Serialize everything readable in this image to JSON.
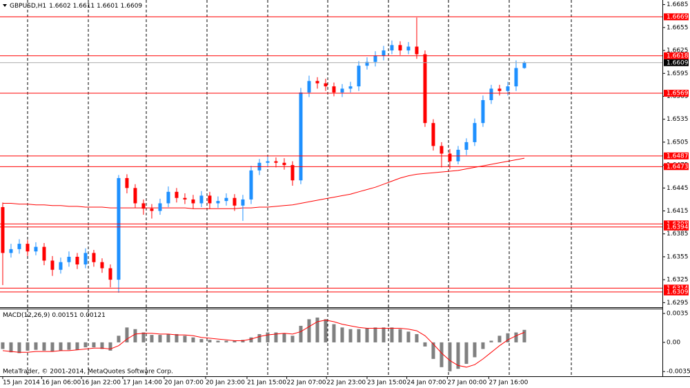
{
  "chart_data": [
    {
      "type": "candlestick",
      "title": "GBPUSD,H1",
      "open": [
        1.642,
        1.636,
        1.6365,
        1.6372,
        1.6362,
        1.6368,
        1.635,
        1.6338,
        1.6348,
        1.6355,
        1.6345,
        1.636,
        1.6348,
        1.634,
        1.6325,
        1.6458,
        1.6445,
        1.6425,
        1.6418,
        1.6415,
        1.6425,
        1.644,
        1.6432,
        1.643,
        1.6425,
        1.6435,
        1.6425,
        1.6428,
        1.6432,
        1.6422,
        1.643,
        1.6468,
        1.6478,
        1.648,
        1.6478,
        1.6475,
        1.6455,
        1.657,
        1.6585,
        1.6582,
        1.6578,
        1.657,
        1.6575,
        1.6578,
        1.6605,
        1.661,
        1.6618,
        1.6625,
        1.6632,
        1.6625,
        1.663,
        1.662,
        1.653,
        1.65,
        1.649,
        1.648,
        1.6495,
        1.6505,
        1.653,
        1.656,
        1.6575,
        1.6572,
        1.6578,
        1.6602
      ],
      "high": [
        1.6426,
        1.6372,
        1.6378,
        1.6377,
        1.6374,
        1.6373,
        1.6356,
        1.6354,
        1.6362,
        1.636,
        1.6366,
        1.6364,
        1.6353,
        1.6345,
        1.6462,
        1.6463,
        1.645,
        1.643,
        1.6424,
        1.6431,
        1.6447,
        1.6445,
        1.6438,
        1.6436,
        1.6441,
        1.644,
        1.6434,
        1.6438,
        1.6437,
        1.6436,
        1.6474,
        1.6483,
        1.6486,
        1.6485,
        1.6484,
        1.648,
        1.6576,
        1.6592,
        1.659,
        1.6588,
        1.6583,
        1.6581,
        1.6584,
        1.6611,
        1.6616,
        1.6624,
        1.6631,
        1.6638,
        1.6637,
        1.6636,
        1.6668,
        1.6625,
        1.6535,
        1.6505,
        1.6496,
        1.65,
        1.651,
        1.6536,
        1.6566,
        1.658,
        1.658,
        1.6584,
        1.6612,
        1.6611
      ],
      "low": [
        1.6318,
        1.6354,
        1.6359,
        1.6356,
        1.6357,
        1.6344,
        1.633,
        1.6333,
        1.6342,
        1.6339,
        1.634,
        1.6342,
        1.6334,
        1.6315,
        1.6308,
        1.6438,
        1.6419,
        1.641,
        1.6405,
        1.641,
        1.642,
        1.6426,
        1.6424,
        1.6418,
        1.642,
        1.6418,
        1.6419,
        1.6422,
        1.6415,
        1.6402,
        1.6424,
        1.6462,
        1.6472,
        1.6472,
        1.6469,
        1.6448,
        1.645,
        1.6564,
        1.6575,
        1.6572,
        1.6565,
        1.6564,
        1.657,
        1.6572,
        1.66,
        1.6604,
        1.6612,
        1.662,
        1.6619,
        1.662,
        1.6614,
        1.6525,
        1.6494,
        1.6472,
        1.647,
        1.6476,
        1.6488,
        1.65,
        1.6525,
        1.6555,
        1.6566,
        1.6566,
        1.6572,
        1.6601
      ],
      "close": [
        1.636,
        1.6365,
        1.6372,
        1.6362,
        1.6368,
        1.635,
        1.6338,
        1.6348,
        1.6355,
        1.6345,
        1.636,
        1.6348,
        1.634,
        1.6325,
        1.6458,
        1.6445,
        1.6425,
        1.6418,
        1.6415,
        1.6425,
        1.644,
        1.6432,
        1.643,
        1.6425,
        1.6435,
        1.6425,
        1.6428,
        1.6432,
        1.6422,
        1.643,
        1.6468,
        1.6478,
        1.648,
        1.6478,
        1.6475,
        1.6455,
        1.657,
        1.6585,
        1.6582,
        1.6578,
        1.657,
        1.6575,
        1.6578,
        1.6605,
        1.661,
        1.6618,
        1.6625,
        1.6632,
        1.6625,
        1.663,
        1.662,
        1.653,
        1.65,
        1.649,
        1.648,
        1.6495,
        1.6505,
        1.653,
        1.656,
        1.6575,
        1.6572,
        1.6578,
        1.6602,
        1.6609
      ],
      "up_color": "#1e90ff",
      "down_color": "#ff0000",
      "ma": {
        "color": "#ff0000",
        "values": [
          1.6425,
          1.6425,
          1.6424,
          1.6424,
          1.6423,
          1.6423,
          1.6422,
          1.6422,
          1.6421,
          1.6421,
          1.642,
          1.642,
          1.642,
          1.6419,
          1.6419,
          1.6419,
          1.6419,
          1.6419,
          1.6419,
          1.6419,
          1.6419,
          1.6419,
          1.6419,
          1.6418,
          1.6418,
          1.6418,
          1.6418,
          1.6418,
          1.6418,
          1.6419,
          1.6419,
          1.642,
          1.642,
          1.6421,
          1.6422,
          1.6423,
          1.6425,
          1.6427,
          1.6429,
          1.6431,
          1.6433,
          1.6435,
          1.6437,
          1.644,
          1.6443,
          1.6446,
          1.645,
          1.6454,
          1.6458,
          1.6461,
          1.6463,
          1.6464,
          1.6465,
          1.6466,
          1.6467,
          1.6468,
          1.647,
          1.6472,
          1.6474,
          1.6476,
          1.6478,
          1.648,
          1.6482,
          1.6484
        ]
      },
      "levels": [
        1.6669,
        1.6618,
        1.6569,
        1.6487,
        1.6473,
        1.6398,
        1.6394,
        1.6314,
        1.6309
      ],
      "level_color": "#ff0000",
      "ylim": [
        1.6289,
        1.6691
      ],
      "yticks": [
        1.6685,
        1.6655,
        1.6625,
        1.6595,
        1.6565,
        1.6535,
        1.6505,
        1.6475,
        1.6445,
        1.6415,
        1.6385,
        1.6355,
        1.6325,
        1.6295
      ],
      "xlim": [
        -0.33,
        79.67
      ],
      "xticks": [
        {
          "value": 0,
          "label": "15 Jan 2014"
        },
        {
          "value": 4.7,
          "label": "16 Jan 06:00"
        },
        {
          "value": 9.5,
          "label": "16 Jan 22:00"
        },
        {
          "value": 14.5,
          "label": "17 Jan 14:00"
        },
        {
          "value": 19.5,
          "label": "20 Jan 07:00"
        },
        {
          "value": 24.5,
          "label": "20 Jan 23:00"
        },
        {
          "value": 29.5,
          "label": "21 Jan 15:00"
        },
        {
          "value": 34.3,
          "label": "22 Jan 07:00"
        },
        {
          "value": 39.1,
          "label": "22 Jan 23:00"
        },
        {
          "value": 44,
          "label": "23 Jan 15:00"
        },
        {
          "value": 48.8,
          "label": "24 Jan 07:00"
        },
        {
          "value": 53.7,
          "label": "27 Jan 00:00"
        },
        {
          "value": 58.7,
          "label": "27 Jan 16:00"
        }
      ]
    },
    {
      "type": "macd",
      "title": "MACD(12,26,9)",
      "values": [
        -0.0008,
        -0.0012,
        -0.0013,
        -0.001,
        -0.0009,
        -0.001,
        -0.0011,
        -0.001,
        -0.0009,
        -0.0009,
        -0.0006,
        -0.0006,
        -0.0008,
        -0.001,
        0.0008,
        0.0018,
        0.0016,
        0.0012,
        0.0009,
        0.0009,
        0.001,
        0.001,
        0.0008,
        0.0006,
        0.0004,
        0.0003,
        0.0002,
        0.0002,
        0.0002,
        0.0003,
        0.0006,
        0.001,
        0.0012,
        0.0012,
        0.0011,
        0.0008,
        0.002,
        0.0028,
        0.003,
        0.0028,
        0.0022,
        0.0018,
        0.0016,
        0.0016,
        0.0017,
        0.0018,
        0.0018,
        0.0018,
        0.0016,
        0.0013,
        0.001,
        -0.0005,
        -0.002,
        -0.003,
        -0.0035,
        -0.0032,
        -0.0026,
        -0.0018,
        -0.0008,
        0.0002,
        0.0008,
        0.0011,
        0.0012,
        0.00151
      ],
      "bar_color": "#808080",
      "signal": {
        "color": "#ff0000",
        "values": [
          -0.001,
          -0.0011,
          -0.0012,
          -0.0012,
          -0.0011,
          -0.0011,
          -0.0011,
          -0.001,
          -0.001,
          -0.0009,
          -0.0008,
          -0.0007,
          -0.0007,
          -0.0008,
          -0.0004,
          0.0004,
          0.001,
          0.0011,
          0.0011,
          0.001,
          0.001,
          0.0009,
          0.0009,
          0.0008,
          0.0006,
          0.0005,
          0.0004,
          0.0003,
          0.0002,
          0.0002,
          0.0004,
          0.0007,
          0.0009,
          0.001,
          0.0011,
          0.001,
          0.0013,
          0.0019,
          0.0025,
          0.0027,
          0.0025,
          0.0022,
          0.002,
          0.0018,
          0.0017,
          0.0017,
          0.0017,
          0.0017,
          0.0017,
          0.0016,
          0.0014,
          0.0008,
          -0.0002,
          -0.0013,
          -0.0022,
          -0.0028,
          -0.003,
          -0.0027,
          -0.002,
          -0.0012,
          -0.0004,
          0.0003,
          0.0008,
          0.00121
        ]
      },
      "ylim": [
        -0.0041,
        0.004
      ],
      "yticks": [
        0.0035,
        {
          "value": 0,
          "label": "0.00"
        },
        -0.00353
      ],
      "xlim": [
        -0.33,
        79.67
      ]
    }
  ],
  "footer": "MetaTrader, © 2001-2014, MetaQuotes Software Corp."
}
